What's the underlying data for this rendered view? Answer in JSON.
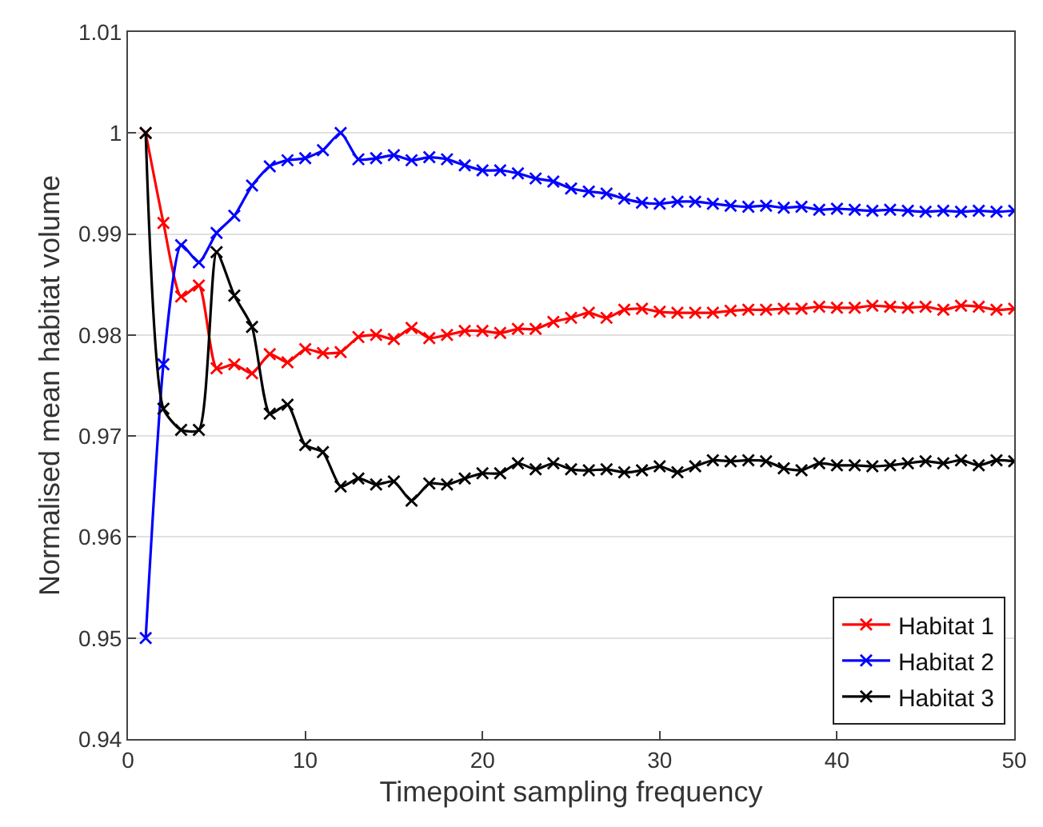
{
  "chart_data": {
    "type": "line",
    "xlabel": "Timepoint sampling frequency",
    "ylabel": "Normalised mean habitat volume",
    "x": [
      1,
      2,
      3,
      4,
      5,
      6,
      7,
      8,
      9,
      10,
      11,
      12,
      13,
      14,
      15,
      16,
      17,
      18,
      19,
      20,
      21,
      22,
      23,
      24,
      25,
      26,
      27,
      28,
      29,
      30,
      31,
      32,
      33,
      34,
      35,
      36,
      37,
      38,
      39,
      40,
      41,
      42,
      43,
      44,
      45,
      46,
      47,
      48,
      49,
      50
    ],
    "series": [
      {
        "name": "Habitat 1",
        "color": "#ff0000",
        "values": [
          1.0,
          0.9911,
          0.9838,
          0.9849,
          0.9767,
          0.9771,
          0.9762,
          0.9781,
          0.9773,
          0.9786,
          0.9782,
          0.9783,
          0.9798,
          0.98,
          0.9796,
          0.9807,
          0.9797,
          0.98,
          0.9804,
          0.9804,
          0.9802,
          0.9806,
          0.9806,
          0.9813,
          0.9817,
          0.9822,
          0.9817,
          0.9825,
          0.9826,
          0.9823,
          0.9822,
          0.9822,
          0.9822,
          0.9824,
          0.9825,
          0.9825,
          0.9826,
          0.9826,
          0.9828,
          0.9827,
          0.9827,
          0.9829,
          0.9828,
          0.9827,
          0.9828,
          0.9825,
          0.9829,
          0.9828,
          0.9825,
          0.9826
        ]
      },
      {
        "name": "Habitat 2",
        "color": "#0000ff",
        "values": [
          0.95,
          0.9771,
          0.9889,
          0.9872,
          0.9901,
          0.9918,
          0.9948,
          0.9967,
          0.9973,
          0.9975,
          0.9983,
          1.0,
          0.9974,
          0.9975,
          0.9978,
          0.9973,
          0.9976,
          0.9974,
          0.9968,
          0.9963,
          0.9963,
          0.996,
          0.9955,
          0.9952,
          0.9945,
          0.9942,
          0.994,
          0.9935,
          0.9931,
          0.993,
          0.9932,
          0.9932,
          0.993,
          0.9928,
          0.9927,
          0.9928,
          0.9926,
          0.9927,
          0.9924,
          0.9925,
          0.9924,
          0.9923,
          0.9924,
          0.9923,
          0.9922,
          0.9923,
          0.9922,
          0.9923,
          0.9922,
          0.9923
        ]
      },
      {
        "name": "Habitat 3",
        "color": "#000000",
        "values": [
          1.0,
          0.9727,
          0.9706,
          0.9706,
          0.9882,
          0.9839,
          0.9808,
          0.9722,
          0.9731,
          0.9691,
          0.9684,
          0.965,
          0.9658,
          0.9652,
          0.9655,
          0.9636,
          0.9653,
          0.9652,
          0.9658,
          0.9663,
          0.9663,
          0.9673,
          0.9667,
          0.9673,
          0.9667,
          0.9666,
          0.9667,
          0.9664,
          0.9666,
          0.967,
          0.9664,
          0.967,
          0.9676,
          0.9675,
          0.9676,
          0.9675,
          0.9668,
          0.9666,
          0.9673,
          0.9671,
          0.9671,
          0.967,
          0.9671,
          0.9673,
          0.9675,
          0.9673,
          0.9676,
          0.9671,
          0.9676,
          0.9675
        ]
      }
    ],
    "xlim": [
      0,
      50
    ],
    "xticks": [
      0,
      10,
      20,
      30,
      40,
      50
    ],
    "ylim": [
      0.94,
      1.01
    ],
    "yticks": [
      0.94,
      0.95,
      0.96,
      0.97,
      0.98,
      0.99,
      1,
      1.01
    ],
    "grid": "y",
    "legend": "bottom right",
    "marker": "cross",
    "line_style": "solid"
  }
}
